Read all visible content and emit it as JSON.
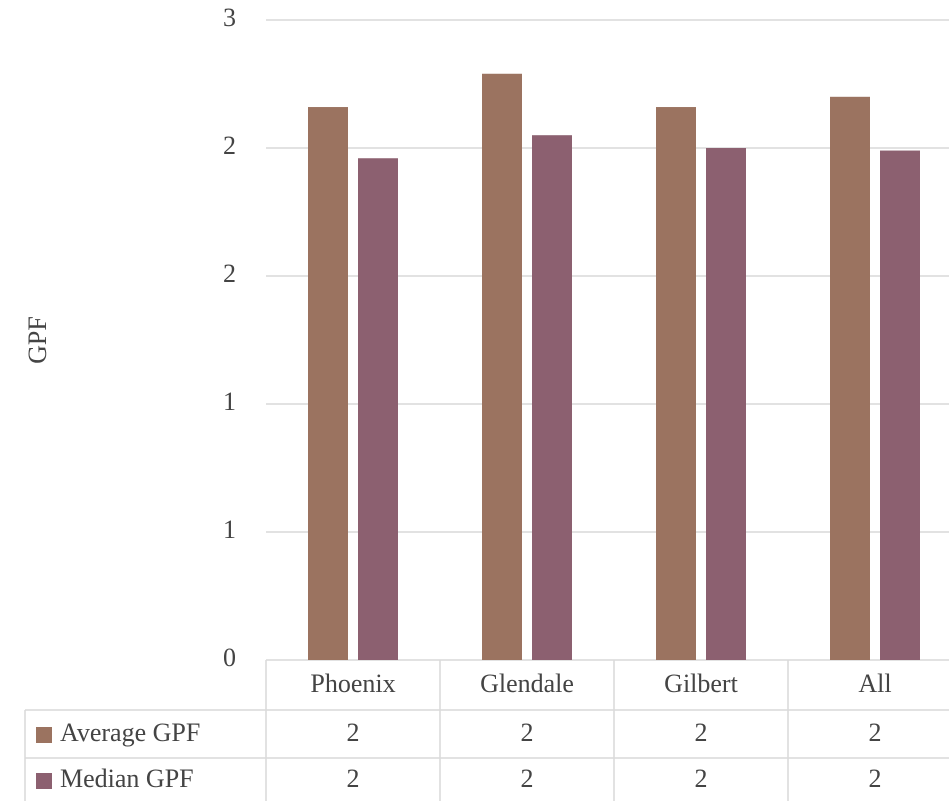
{
  "chart_data": {
    "type": "bar",
    "y_label": "GPF",
    "categories": [
      "Phoenix",
      "Glendale",
      "Gilbert",
      "All"
    ],
    "series": [
      {
        "name": "Average GPF",
        "color": "#9b7360",
        "values": [
          2.16,
          2.29,
          2.16,
          2.2
        ],
        "value_labels": [
          "2",
          "2",
          "2",
          "2"
        ]
      },
      {
        "name": "Median GPF",
        "color": "#8c6070",
        "values": [
          1.96,
          2.05,
          2.0,
          1.99
        ],
        "value_labels": [
          "2",
          "2",
          "2",
          "2"
        ]
      }
    ],
    "ylim": [
      0,
      2.5
    ],
    "yticks": [
      0,
      {
        "value": 0.5,
        "label": "1"
      },
      1,
      {
        "value": 1.5,
        "label": "2"
      },
      2,
      {
        "value": 2.5,
        "label": "3"
      }
    ],
    "grid": true
  }
}
